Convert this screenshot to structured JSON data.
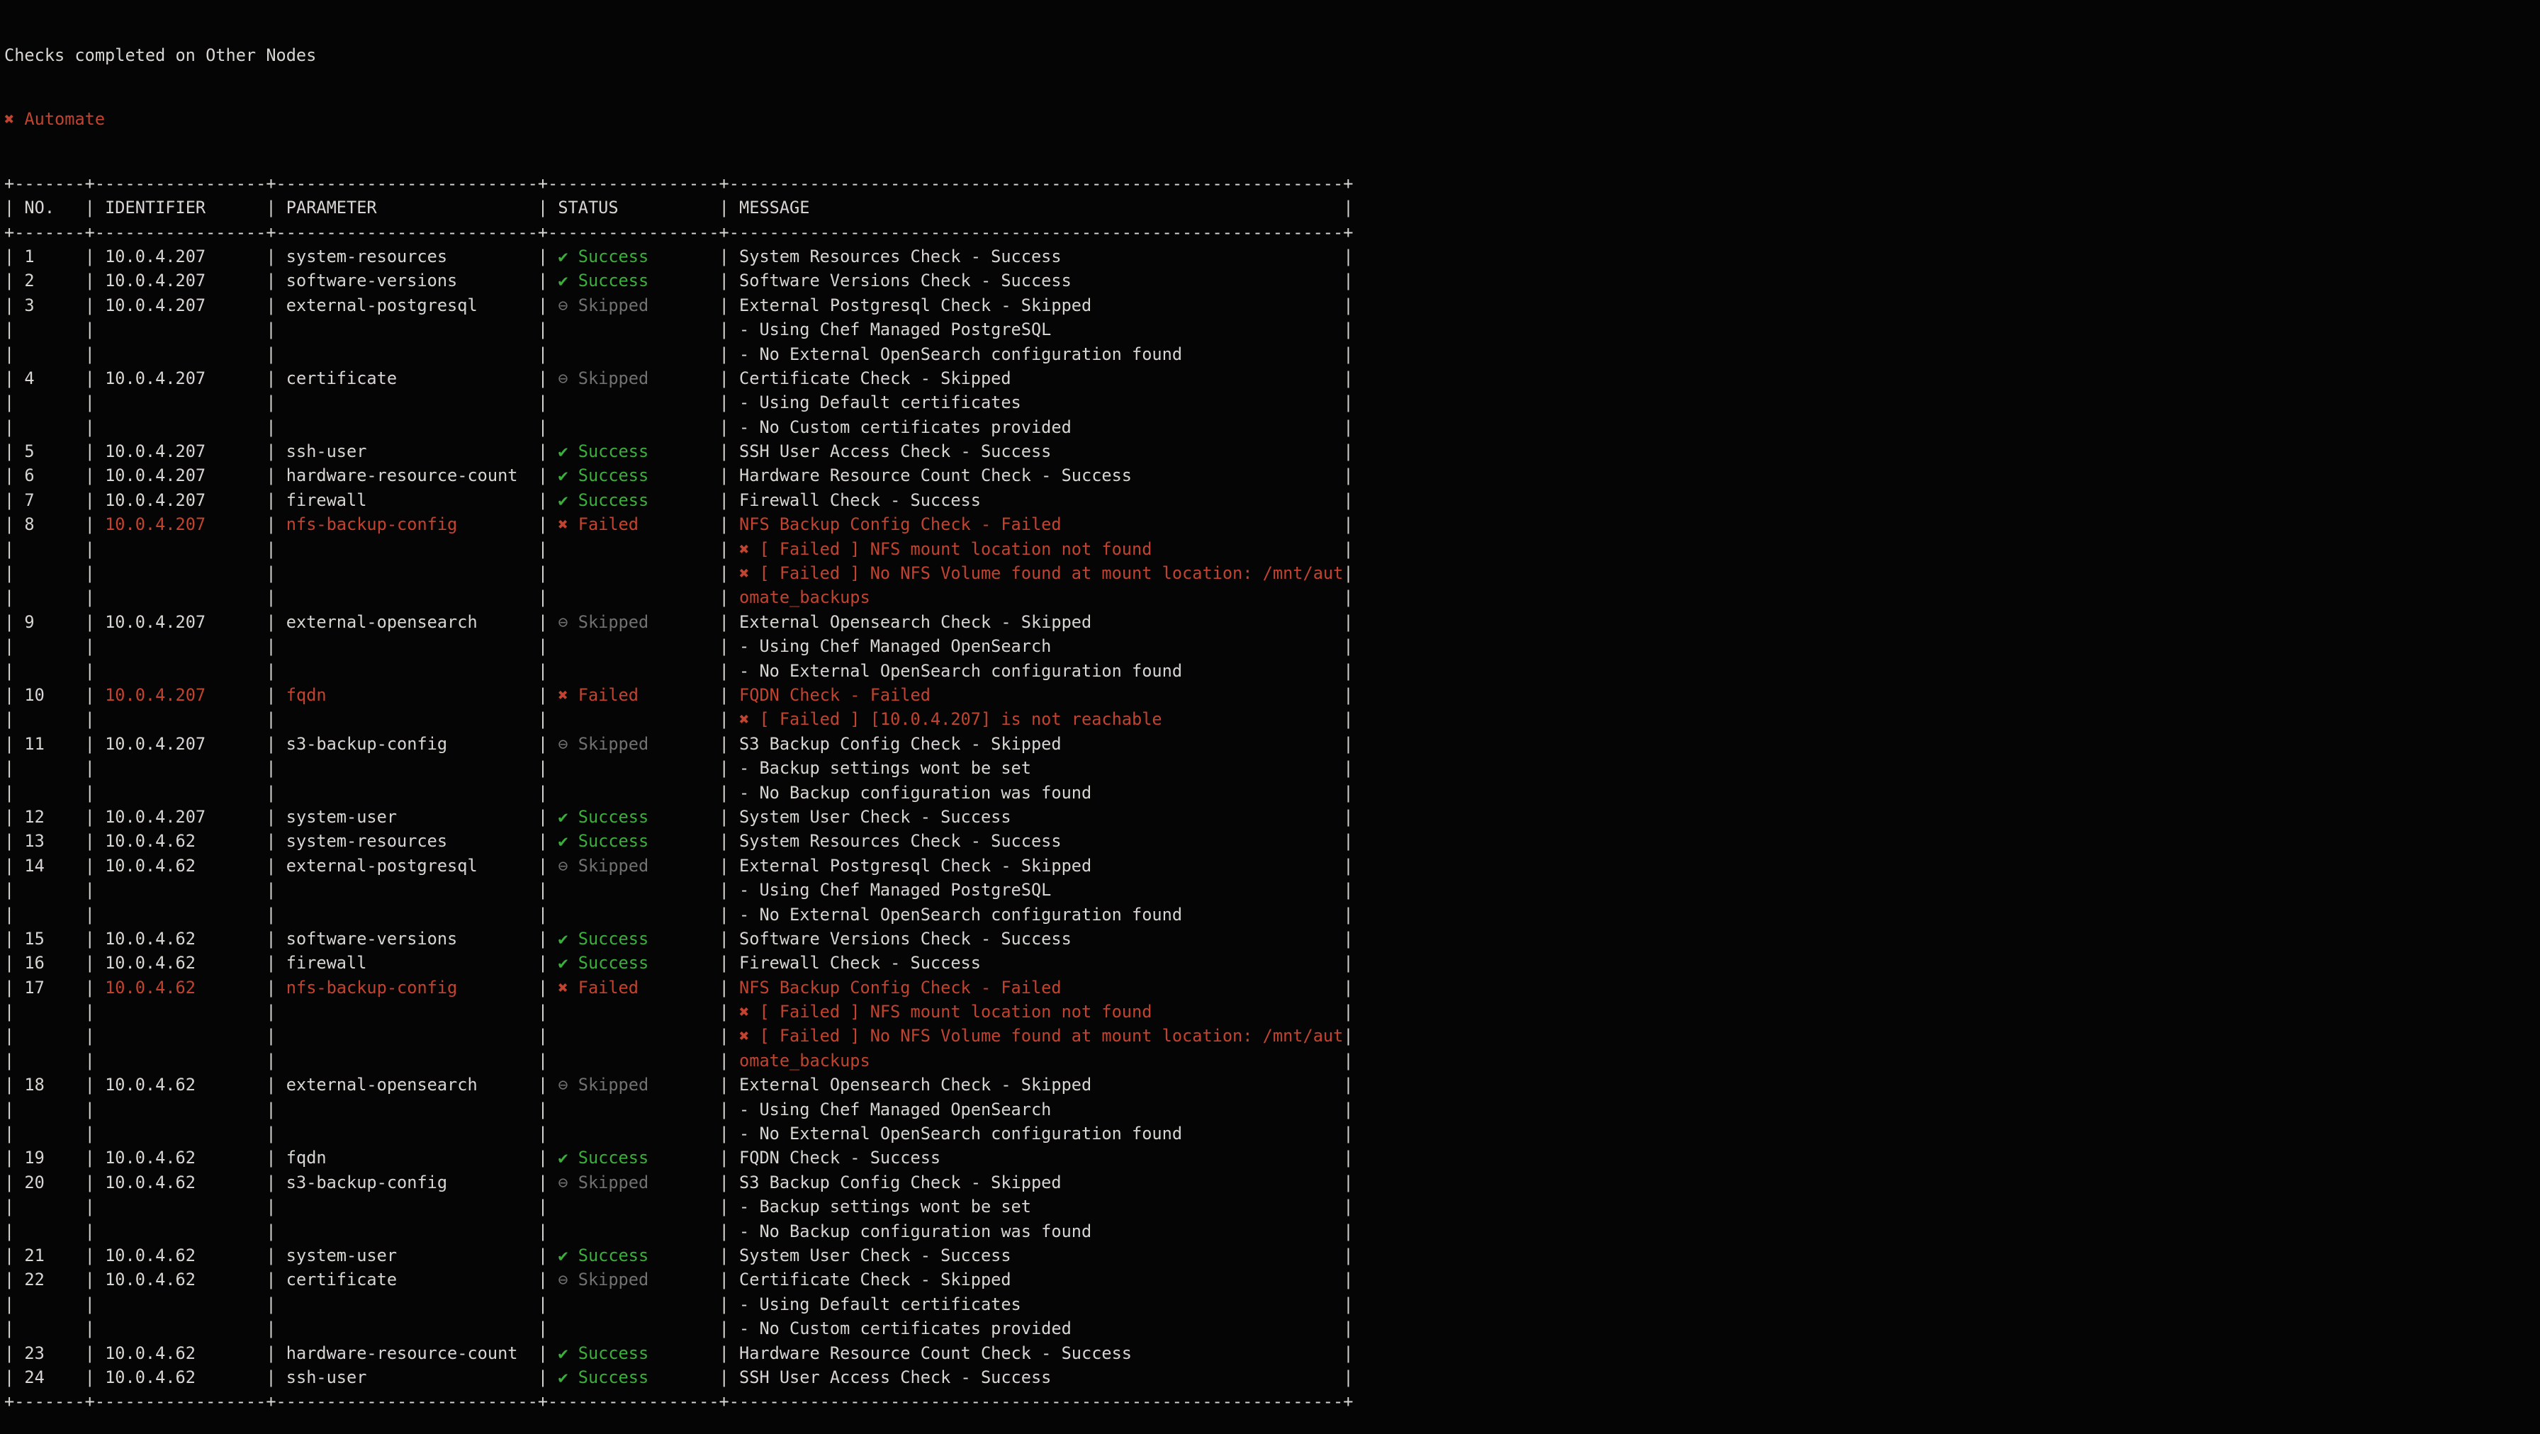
{
  "terminal": {
    "title": "Checks completed on Other Nodes",
    "failed_node_label": "Automate"
  },
  "status_icons": {
    "success": "✔",
    "failed": "✖",
    "skipped": "⊖"
  },
  "status_labels": {
    "success": "Success",
    "failed": "Failed",
    "skipped": "Skipped"
  },
  "colors": {
    "background": "#050505",
    "foreground": "#d8d6d2",
    "success": "#3cae3c",
    "failed": "#c2432f",
    "skipped": "#717171"
  },
  "table": {
    "columns": [
      "NO.",
      "IDENTIFIER",
      "PARAMETER",
      "STATUS",
      "MESSAGE"
    ],
    "rows": [
      {
        "no": "1",
        "identifier": "10.0.4.207",
        "parameter": "system-resources",
        "status": "success",
        "message_lines": [
          "System Resources Check - Success"
        ]
      },
      {
        "no": "2",
        "identifier": "10.0.4.207",
        "parameter": "software-versions",
        "status": "success",
        "message_lines": [
          "Software Versions Check - Success"
        ]
      },
      {
        "no": "3",
        "identifier": "10.0.4.207",
        "parameter": "external-postgresql",
        "status": "skipped",
        "message_lines": [
          "External Postgresql Check - Skipped",
          "- Using Chef Managed PostgreSQL",
          "- No External OpenSearch configuration found"
        ]
      },
      {
        "no": "4",
        "identifier": "10.0.4.207",
        "parameter": "certificate",
        "status": "skipped",
        "message_lines": [
          "Certificate Check - Skipped",
          "- Using Default certificates",
          "- No Custom certificates provided"
        ]
      },
      {
        "no": "5",
        "identifier": "10.0.4.207",
        "parameter": "ssh-user",
        "status": "success",
        "message_lines": [
          "SSH User Access Check - Success"
        ]
      },
      {
        "no": "6",
        "identifier": "10.0.4.207",
        "parameter": "hardware-resource-count",
        "status": "success",
        "message_lines": [
          "Hardware Resource Count Check - Success"
        ]
      },
      {
        "no": "7",
        "identifier": "10.0.4.207",
        "parameter": "firewall",
        "status": "success",
        "message_lines": [
          "Firewall Check - Success"
        ]
      },
      {
        "no": "8",
        "identifier": "10.0.4.207",
        "parameter": "nfs-backup-config",
        "status": "failed",
        "message_lines": [
          "NFS Backup Config Check - Failed",
          "✖ [ Failed ] NFS mount location not found",
          "✖ [ Failed ] No NFS Volume found at mount location: /mnt/aut",
          "omate_backups"
        ]
      },
      {
        "no": "9",
        "identifier": "10.0.4.207",
        "parameter": "external-opensearch",
        "status": "skipped",
        "message_lines": [
          "External Opensearch Check - Skipped",
          "- Using Chef Managed OpenSearch",
          "- No External OpenSearch configuration found"
        ]
      },
      {
        "no": "10",
        "identifier": "10.0.4.207",
        "parameter": "fqdn",
        "status": "failed",
        "message_lines": [
          "FQDN Check - Failed",
          "✖ [ Failed ] [10.0.4.207] is not reachable"
        ]
      },
      {
        "no": "11",
        "identifier": "10.0.4.207",
        "parameter": "s3-backup-config",
        "status": "skipped",
        "message_lines": [
          "S3 Backup Config Check - Skipped",
          "- Backup settings wont be set",
          "- No Backup configuration was found"
        ]
      },
      {
        "no": "12",
        "identifier": "10.0.4.207",
        "parameter": "system-user",
        "status": "success",
        "message_lines": [
          "System User Check - Success"
        ]
      },
      {
        "no": "13",
        "identifier": "10.0.4.62",
        "parameter": "system-resources",
        "status": "success",
        "message_lines": [
          "System Resources Check - Success"
        ]
      },
      {
        "no": "14",
        "identifier": "10.0.4.62",
        "parameter": "external-postgresql",
        "status": "skipped",
        "message_lines": [
          "External Postgresql Check - Skipped",
          "- Using Chef Managed PostgreSQL",
          "- No External OpenSearch configuration found"
        ]
      },
      {
        "no": "15",
        "identifier": "10.0.4.62",
        "parameter": "software-versions",
        "status": "success",
        "message_lines": [
          "Software Versions Check - Success"
        ]
      },
      {
        "no": "16",
        "identifier": "10.0.4.62",
        "parameter": "firewall",
        "status": "success",
        "message_lines": [
          "Firewall Check - Success"
        ]
      },
      {
        "no": "17",
        "identifier": "10.0.4.62",
        "parameter": "nfs-backup-config",
        "status": "failed",
        "message_lines": [
          "NFS Backup Config Check - Failed",
          "✖ [ Failed ] NFS mount location not found",
          "✖ [ Failed ] No NFS Volume found at mount location: /mnt/aut",
          "omate_backups"
        ]
      },
      {
        "no": "18",
        "identifier": "10.0.4.62",
        "parameter": "external-opensearch",
        "status": "skipped",
        "message_lines": [
          "External Opensearch Check - Skipped",
          "- Using Chef Managed OpenSearch",
          "- No External OpenSearch configuration found"
        ]
      },
      {
        "no": "19",
        "identifier": "10.0.4.62",
        "parameter": "fqdn",
        "status": "success",
        "message_lines": [
          "FQDN Check - Success"
        ]
      },
      {
        "no": "20",
        "identifier": "10.0.4.62",
        "parameter": "s3-backup-config",
        "status": "skipped",
        "message_lines": [
          "S3 Backup Config Check - Skipped",
          "- Backup settings wont be set",
          "- No Backup configuration was found"
        ]
      },
      {
        "no": "21",
        "identifier": "10.0.4.62",
        "parameter": "system-user",
        "status": "success",
        "message_lines": [
          "System User Check - Success"
        ]
      },
      {
        "no": "22",
        "identifier": "10.0.4.62",
        "parameter": "certificate",
        "status": "skipped",
        "message_lines": [
          "Certificate Check - Skipped",
          "- Using Default certificates",
          "- No Custom certificates provided"
        ]
      },
      {
        "no": "23",
        "identifier": "10.0.4.62",
        "parameter": "hardware-resource-count",
        "status": "success",
        "message_lines": [
          "Hardware Resource Count Check - Success"
        ]
      },
      {
        "no": "24",
        "identifier": "10.0.4.62",
        "parameter": "ssh-user",
        "status": "success",
        "message_lines": [
          "SSH User Access Check - Success"
        ]
      }
    ]
  }
}
